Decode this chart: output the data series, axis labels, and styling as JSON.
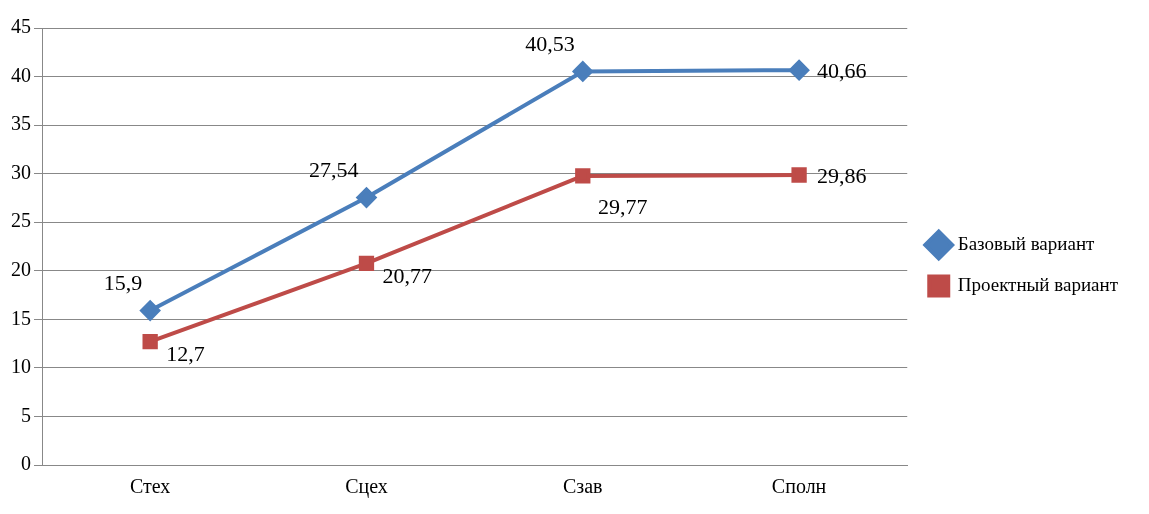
{
  "chart_data": {
    "type": "line",
    "categories": [
      "Стех",
      "Сцех",
      "Сзав",
      "Сполн"
    ],
    "series": [
      {
        "name": "Базовый вариант",
        "color": "#4a7ebb",
        "marker": "diamond",
        "values": [
          15.9,
          27.54,
          40.53,
          40.66
        ],
        "value_labels": [
          "15,9",
          "27,54",
          "40,53",
          "40,66"
        ]
      },
      {
        "name": "Проектный вариант",
        "color": "#be4b48",
        "marker": "square",
        "values": [
          12.7,
          20.77,
          29.77,
          29.86
        ],
        "value_labels": [
          "12,7",
          "20,77",
          "29,77",
          "29,86"
        ]
      }
    ],
    "ylim": [
      0,
      45
    ],
    "yticks": [
      0,
      5,
      10,
      15,
      20,
      25,
      30,
      35,
      40,
      45
    ],
    "grid": "y",
    "legend": "right",
    "line_style": "solid"
  }
}
